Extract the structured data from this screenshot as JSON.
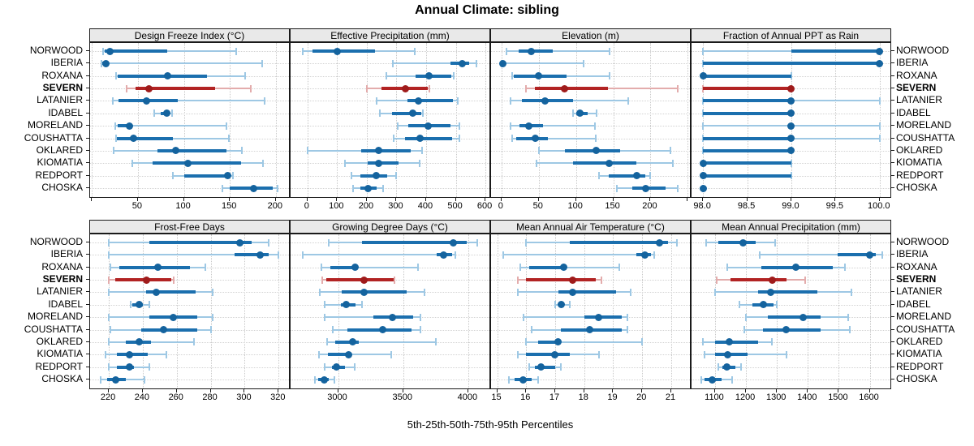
{
  "title": "Annual Climate: sibling",
  "caption": "5th-25th-50th-75th-95th Percentiles",
  "highlight_station": "SEVERN",
  "percentile_labels": [
    "5th",
    "25th",
    "50th",
    "75th",
    "95th"
  ],
  "colors": {
    "blue": "#1b6fae",
    "blue_light": "#9ec8e4",
    "blue_dot": "#14639e",
    "red": "#b22323",
    "red_light": "#e3acac",
    "red_dot": "#9f1b1b",
    "strip_bg": "#e9e9e9",
    "grid": "#c9c9c9",
    "border": "#1a1a1a"
  },
  "chart_data": {
    "type": "dotplot-percentile-ranges",
    "title": "Annual Climate: sibling",
    "xlabel": "5th-25th-50th-75th-95th Percentiles",
    "grid": "dotted",
    "legend_position": "none",
    "stations": [
      "NORWOOD",
      "IBERIA",
      "ROXANA",
      "SEVERN",
      "LATANIER",
      "IDABEL",
      "MORELAND",
      "COUSHATTA",
      "OKLARED",
      "KIOMATIA",
      "REDPORT",
      "CHOSKA"
    ],
    "percentiles": [
      5,
      25,
      50,
      75,
      95
    ],
    "panels": [
      {
        "name": "Design Freeze Index (°C)",
        "xlim": [
          -2,
          216
        ],
        "ticks": [
          0,
          50,
          100,
          150,
          200
        ],
        "tick_labels": [
          "",
          "50",
          "100",
          "150",
          "200"
        ],
        "values": [
          [
            12,
            14,
            20,
            82,
            157
          ],
          [
            10,
            11,
            15,
            16,
            185
          ],
          [
            26,
            28,
            82,
            125,
            167
          ],
          [
            38,
            47,
            62,
            134,
            173
          ],
          [
            23,
            29,
            59,
            93,
            188
          ],
          [
            68,
            75,
            81,
            84,
            87
          ],
          [
            25,
            28,
            41,
            43,
            146
          ],
          [
            26,
            27,
            45,
            88,
            149
          ],
          [
            24,
            71,
            91,
            146,
            163
          ],
          [
            44,
            66,
            104,
            162,
            186
          ],
          [
            88,
            100,
            148,
            151,
            153
          ],
          [
            142,
            150,
            176,
            197,
            202
          ]
        ]
      },
      {
        "name": "Effective Precipitation (mm)",
        "xlim": [
          -57,
          619
        ],
        "ticks": [
          0,
          100,
          200,
          300,
          400,
          500,
          600
        ],
        "tick_labels": [
          "0",
          "100",
          "200",
          "300",
          "400",
          "500",
          "600"
        ],
        "values": [
          [
            -16,
            17,
            101,
            227,
            362
          ],
          [
            287,
            483,
            522,
            546,
            570
          ],
          [
            265,
            365,
            410,
            486,
            493
          ],
          [
            200,
            250,
            330,
            405,
            410
          ],
          [
            233,
            337,
            375,
            490,
            508
          ],
          [
            245,
            285,
            355,
            383,
            390
          ],
          [
            305,
            340,
            408,
            482,
            511
          ],
          [
            290,
            330,
            380,
            489,
            511
          ],
          [
            0,
            180,
            239,
            347,
            385
          ],
          [
            125,
            203,
            241,
            306,
            378
          ],
          [
            147,
            177,
            232,
            268,
            300
          ],
          [
            153,
            177,
            203,
            232,
            255
          ]
        ]
      },
      {
        "name": "Elevation (m)",
        "xlim": [
          -14,
          255
        ],
        "ticks": [
          0,
          50,
          100,
          150,
          200,
          250
        ],
        "tick_labels": [
          "0",
          "50",
          "100",
          "150",
          "200",
          ""
        ],
        "values": [
          [
            7,
            23,
            40,
            69,
            145
          ],
          [
            0,
            1,
            2,
            4,
            110
          ],
          [
            14,
            16,
            50,
            87,
            145
          ],
          [
            33,
            45,
            85,
            143,
            237
          ],
          [
            12,
            27,
            58,
            96,
            170
          ],
          [
            96,
            100,
            105,
            116,
            128
          ],
          [
            12,
            24,
            37,
            56,
            125
          ],
          [
            14,
            20,
            45,
            62,
            127
          ],
          [
            50,
            85,
            127,
            159,
            227
          ],
          [
            47,
            96,
            144,
            181,
            230
          ],
          [
            131,
            144,
            182,
            193,
            200
          ],
          [
            155,
            176,
            194,
            220,
            237
          ]
        ]
      },
      {
        "name": "Fraction of Annual PPT as Rain",
        "xlim": [
          97.87,
          100.14
        ],
        "ticks": [
          98,
          98.5,
          99,
          99.5,
          100
        ],
        "tick_labels": [
          "98.0",
          "98.5",
          "99.0",
          "99.5",
          "100.0"
        ],
        "values": [
          [
            98,
            99,
            100,
            100,
            100
          ],
          [
            98,
            98,
            100,
            100,
            100
          ],
          [
            98,
            98,
            98,
            99,
            99
          ],
          [
            98,
            98,
            99,
            99,
            99
          ],
          [
            98,
            98,
            99,
            99,
            100
          ],
          [
            98,
            98,
            99,
            99,
            99
          ],
          [
            98,
            99,
            99,
            99,
            100
          ],
          [
            98,
            98,
            99,
            99,
            100
          ],
          [
            98,
            98,
            99,
            99,
            99
          ],
          [
            98,
            98,
            98,
            99,
            99
          ],
          [
            98,
            98,
            98,
            99,
            99
          ],
          [
            98,
            98,
            98,
            98,
            98
          ]
        ]
      },
      {
        "name": "Frost-Free Days",
        "xlim": [
          209,
          327
        ],
        "ticks": [
          220,
          240,
          260,
          280,
          300,
          320
        ],
        "tick_labels": [
          "220",
          "240",
          "260",
          "280",
          "300",
          "320"
        ],
        "values": [
          [
            220,
            244,
            297,
            304,
            314
          ],
          [
            220,
            294,
            309,
            314,
            320
          ],
          [
            221,
            226,
            249,
            268,
            277
          ],
          [
            220,
            224,
            242,
            257,
            258
          ],
          [
            220,
            242,
            248,
            271,
            281
          ],
          [
            233,
            234,
            238,
            240,
            244
          ],
          [
            220,
            244,
            258,
            272,
            281
          ],
          [
            221,
            239,
            252,
            272,
            280
          ],
          [
            220,
            230,
            238,
            245,
            270
          ],
          [
            218,
            225,
            232,
            243,
            254
          ],
          [
            220,
            225,
            232,
            235,
            244
          ],
          [
            215,
            219,
            224,
            230,
            241
          ]
        ]
      },
      {
        "name": "Growing Degree Days (°C)",
        "xlim": [
          2635,
          4175
        ],
        "ticks": [
          3000,
          3500,
          4000
        ],
        "tick_labels": [
          "3000",
          "3500",
          "4000"
        ],
        "values": [
          [
            2930,
            3185,
            3885,
            3990,
            4070
          ],
          [
            2730,
            3760,
            3810,
            3875,
            3900
          ],
          [
            2870,
            2940,
            3130,
            3145,
            3615
          ],
          [
            2880,
            2910,
            3200,
            3425,
            3435
          ],
          [
            2860,
            3025,
            3200,
            3525,
            3665
          ],
          [
            2895,
            3020,
            3065,
            3135,
            3185
          ],
          [
            2895,
            3270,
            3420,
            3575,
            3635
          ],
          [
            2960,
            3070,
            3345,
            3565,
            3635
          ],
          [
            2915,
            2975,
            3115,
            3160,
            3750
          ],
          [
            2855,
            2920,
            3080,
            3095,
            3410
          ],
          [
            2895,
            2950,
            2990,
            3050,
            3125
          ],
          [
            2820,
            2845,
            2895,
            2930,
            2970
          ]
        ]
      },
      {
        "name": "Mean Annual Air Temperature (°C)",
        "xlim": [
          14.79,
          21.7
        ],
        "ticks": [
          15,
          16,
          17,
          18,
          19,
          20,
          21
        ],
        "tick_labels": [
          "15",
          "16",
          "17",
          "18",
          "19",
          "20",
          "21"
        ],
        "values": [
          [
            16.0,
            17.5,
            20.6,
            20.9,
            21.2
          ],
          [
            15.2,
            19.8,
            20.1,
            20.3,
            20.4
          ],
          [
            15.8,
            16.1,
            17.3,
            17.4,
            19.2
          ],
          [
            15.7,
            16.0,
            17.6,
            18.4,
            18.6
          ],
          [
            15.7,
            17.1,
            17.6,
            19.1,
            19.6
          ],
          [
            17.0,
            17.1,
            17.2,
            17.3,
            17.5
          ],
          [
            15.9,
            18.0,
            18.5,
            19.3,
            19.5
          ],
          [
            16.2,
            17.2,
            18.2,
            19.3,
            19.5
          ],
          [
            16.0,
            16.4,
            17.1,
            17.2,
            20.0
          ],
          [
            15.7,
            16.0,
            17.0,
            17.5,
            18.5
          ],
          [
            16.1,
            16.3,
            16.5,
            17.0,
            17.2
          ],
          [
            15.4,
            15.6,
            15.9,
            16.2,
            16.4
          ]
        ]
      },
      {
        "name": "Mean Annual Precipitation (mm)",
        "xlim": [
          1024,
          1672
        ],
        "ticks": [
          1100,
          1200,
          1300,
          1400,
          1500,
          1600
        ],
        "tick_labels": [
          "1100",
          "1200",
          "1300",
          "1400",
          "1500",
          "1600"
        ],
        "values": [
          [
            1070,
            1110,
            1190,
            1230,
            1295
          ],
          [
            1245,
            1495,
            1600,
            1620,
            1640
          ],
          [
            1140,
            1250,
            1360,
            1480,
            1520
          ],
          [
            1105,
            1150,
            1285,
            1330,
            1390
          ],
          [
            1100,
            1240,
            1280,
            1430,
            1540
          ],
          [
            1180,
            1220,
            1255,
            1290,
            1300
          ],
          [
            1200,
            1270,
            1385,
            1440,
            1530
          ],
          [
            1195,
            1255,
            1330,
            1440,
            1535
          ],
          [
            1060,
            1100,
            1145,
            1240,
            1285
          ],
          [
            1065,
            1100,
            1140,
            1205,
            1330
          ],
          [
            1110,
            1125,
            1137,
            1165,
            1185
          ],
          [
            1055,
            1065,
            1090,
            1120,
            1155
          ]
        ]
      }
    ]
  }
}
